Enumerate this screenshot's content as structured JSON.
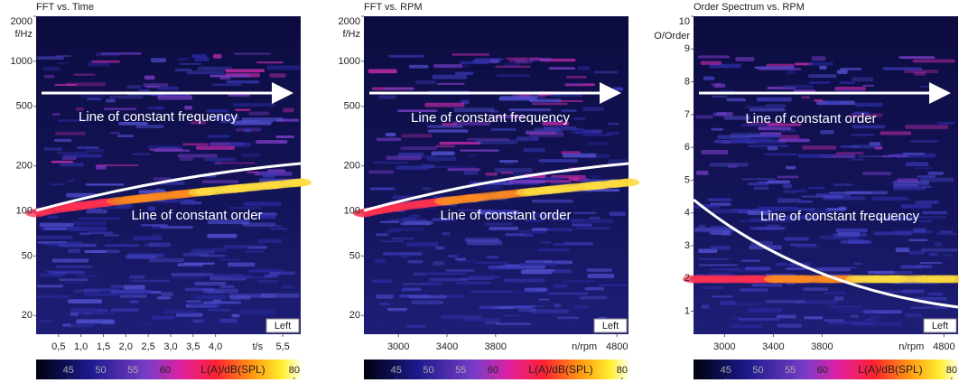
{
  "chart_data": [
    {
      "type": "spectrogram",
      "title": "FFT vs. Time",
      "ylabel": "f/Hz",
      "xlabel": "t/s",
      "log_y": true,
      "ylim": [
        15,
        2000
      ],
      "yticks": [
        20,
        50,
        100,
        200,
        500,
        1000,
        2000
      ],
      "xlim": [
        0,
        5.9
      ],
      "xticks": [
        {
          "value": 0.5,
          "label": "0,5"
        },
        {
          "value": 1.0,
          "label": "1,0"
        },
        {
          "value": 1.5,
          "label": "1,5"
        },
        {
          "value": 2.0,
          "label": "2,0"
        },
        {
          "value": 2.5,
          "label": "2,5"
        },
        {
          "value": 3.0,
          "label": "3,0"
        },
        {
          "value": 3.5,
          "label": "3,5"
        },
        {
          "value": 4.0,
          "label": "4,0"
        },
        {
          "value": 5.5,
          "label": "5,5"
        }
      ],
      "annotations": [
        "Line of constant frequency",
        "Line of constant order"
      ],
      "channel": "Left",
      "colorbar": {
        "label": "L(A)/dB(SPL)",
        "lim": [
          40,
          81
        ],
        "ticks": [
          45,
          50,
          55,
          60,
          80
        ]
      }
    },
    {
      "type": "spectrogram",
      "title": "FFT vs. RPM",
      "ylabel": "f/Hz",
      "xlabel": "n/rpm",
      "log_y": true,
      "ylim": [
        15,
        2000
      ],
      "yticks": [
        20,
        50,
        100,
        200,
        500,
        1000,
        2000
      ],
      "xlim": [
        2716,
        4895
      ],
      "xticks": [
        3000,
        3400,
        3800,
        4800
      ],
      "annotations": [
        "Line of constant frequency",
        "Line of constant order"
      ],
      "channel": "Left",
      "colorbar": {
        "label": "L(A)/dB(SPL)",
        "lim": [
          40,
          81
        ],
        "ticks": [
          45,
          50,
          55,
          60,
          80
        ]
      }
    },
    {
      "type": "spectrogram",
      "title": "Order Spectrum vs. RPM",
      "ylabel": "O/Order",
      "xlabel": "n/rpm",
      "log_y": false,
      "ylim": [
        0.3,
        10
      ],
      "yticks": [
        1,
        2,
        3,
        4,
        5,
        6,
        7,
        8,
        9,
        10
      ],
      "xlim": [
        2745,
        4916
      ],
      "xticks": [
        3000,
        3400,
        3800,
        4800
      ],
      "annotations": [
        "Line of constant order",
        "Line of constant frequency"
      ],
      "channel": "Left",
      "colorbar": {
        "label": "L(A)/dB(SPL)",
        "lim": [
          40,
          81
        ],
        "ticks": [
          45,
          50,
          55,
          60,
          80
        ]
      }
    }
  ]
}
